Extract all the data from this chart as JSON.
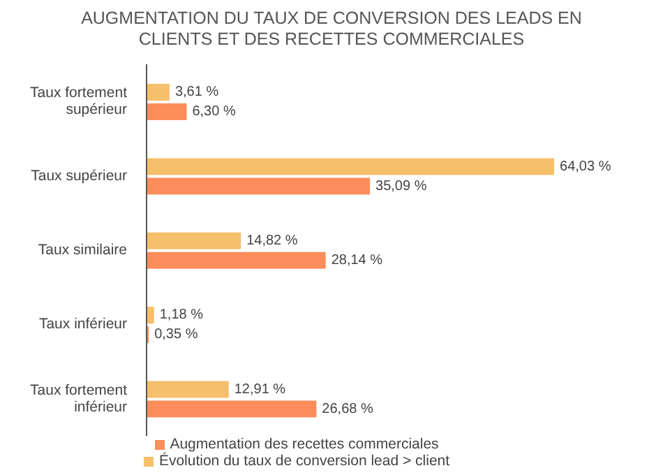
{
  "chart_data": {
    "type": "bar",
    "orientation": "horizontal",
    "title": "AUGMENTATION DU TAUX DE CONVERSION DES LEADS EN CLIENTS ET DES RECETTES COMMERCIALES",
    "categories": [
      "Taux fortement supérieur",
      "Taux supérieur",
      "Taux similaire",
      "Taux inférieur",
      "Taux fortement inférieur"
    ],
    "series": [
      {
        "name": "Évolution du taux de conversion lead > client",
        "color": "#f6bf6b",
        "values": [
          3.61,
          64.03,
          14.82,
          1.18,
          12.91
        ],
        "value_labels": [
          "3,61 %",
          "64,03 %",
          "14,82 %",
          "1,18 %",
          "12,91 %"
        ]
      },
      {
        "name": "Augmentation des recettes commerciales",
        "color": "#fd8d5b",
        "values": [
          6.3,
          35.09,
          28.14,
          0.35,
          26.68
        ],
        "value_labels": [
          "6,30 %",
          "35,09 %",
          "28,14 %",
          "0,35 %",
          "26,68 %"
        ]
      }
    ],
    "legend": "bottom",
    "grid": false
  }
}
